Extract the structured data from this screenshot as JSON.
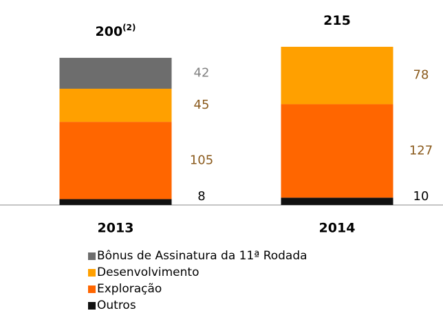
{
  "chart_data": {
    "type": "stacked-bar",
    "categories": [
      "2013",
      "2014"
    ],
    "totals": [
      200,
      215
    ],
    "total_notes": [
      "(2)",
      null
    ],
    "series": [
      {
        "name": "Outros",
        "color": "#111111",
        "label_color": "#000000",
        "values": [
          8,
          10
        ]
      },
      {
        "name": "Exploração",
        "color": "#ff6600",
        "label_color": "#8a5a1c",
        "values": [
          105,
          127
        ]
      },
      {
        "name": "Desenvolvimento",
        "color": "#ffa000",
        "label_color": "#8a5a1c",
        "values": [
          45,
          78
        ]
      },
      {
        "name": "Bônus de Assinatura da 11ª Rodada",
        "color": "#6d6d6d",
        "label_color": "#808080",
        "values": [
          42,
          null
        ]
      }
    ]
  }
}
